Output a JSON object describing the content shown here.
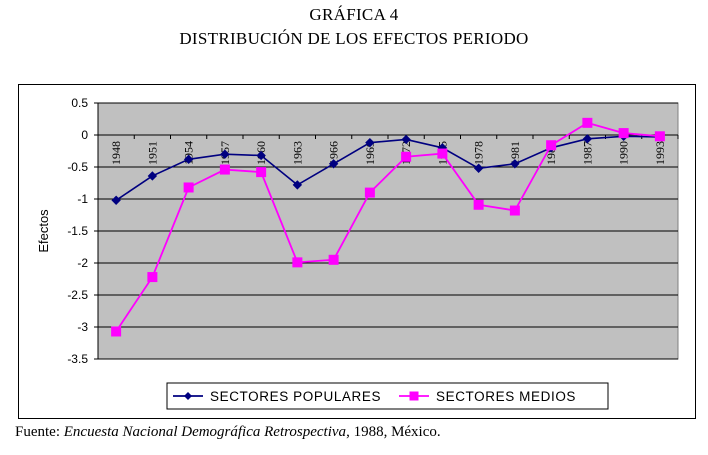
{
  "figure": {
    "title_line1": "GRÁFICA 4",
    "title_line2": "DISTRIBUCIÓN DE LOS EFECTOS PERIODO",
    "source_prefix": "Fuente: ",
    "source_italic": "Encuesta Nacional Demográfica Retrospectiva",
    "source_suffix": ", 1988, México."
  },
  "colors": {
    "populares": "#000080",
    "medios": "#FF00FF",
    "plot_bg": "#C0C0C0"
  },
  "chart_data": {
    "type": "line",
    "title": "DISTRIBUCIÓN DE LOS EFECTOS PERIODO",
    "xlabel": "",
    "ylabel": "Efectos",
    "ylim": [
      -3.5,
      0.5
    ],
    "yticks": [
      "0.5",
      "0",
      "-0.5",
      "-1",
      "-1.5",
      "-2",
      "-2.5",
      "-3",
      "-3.5"
    ],
    "ytick_values": [
      0.5,
      0,
      -0.5,
      -1,
      -1.5,
      -2,
      -2.5,
      -3,
      -3.5
    ],
    "categories": [
      "1948",
      "1951",
      "1954",
      "1957",
      "1960",
      "1963",
      "1966",
      "1969",
      "1972",
      "1975",
      "1978",
      "1981",
      "1984",
      "1987",
      "1990",
      "1993"
    ],
    "grid": true,
    "legend_position": "bottom",
    "series": [
      {
        "name": "SECTORES POPULARES",
        "marker": "diamond",
        "values": [
          -1.02,
          -0.64,
          -0.38,
          -0.3,
          -0.32,
          -0.78,
          -0.45,
          -0.12,
          -0.07,
          -0.2,
          -0.52,
          -0.45,
          -0.2,
          -0.06,
          -0.02,
          -0.03
        ]
      },
      {
        "name": "SECTORES MEDIOS",
        "marker": "square",
        "values": [
          -3.07,
          -2.22,
          -0.82,
          -0.54,
          -0.58,
          -1.99,
          -1.95,
          -0.9,
          -0.34,
          -0.29,
          -1.09,
          -1.18,
          -0.16,
          0.19,
          0.03,
          -0.02
        ]
      }
    ]
  }
}
